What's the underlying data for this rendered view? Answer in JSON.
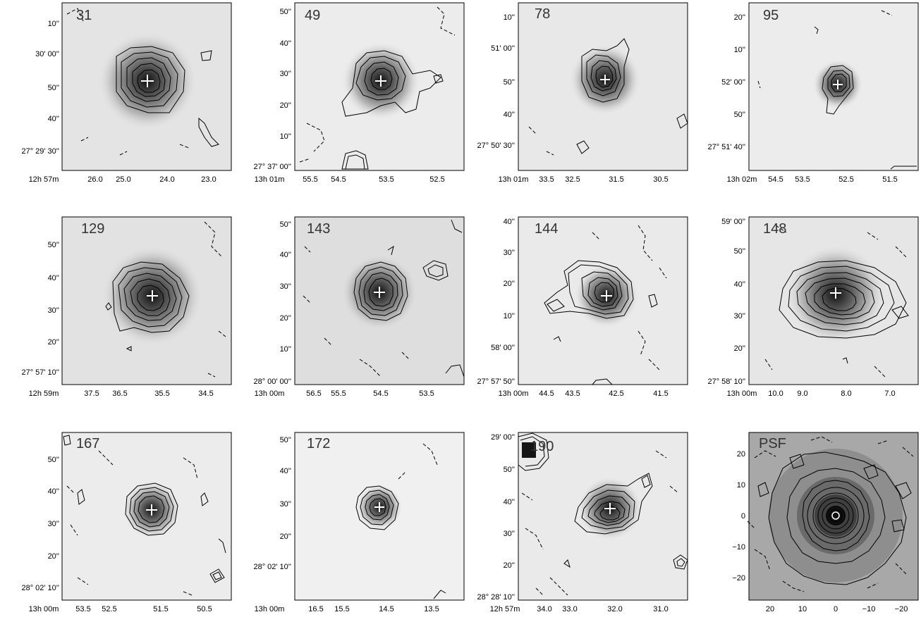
{
  "figure": {
    "panels": [
      {
        "label": "31",
        "x_ticks": [
          "26.0",
          "25.0",
          "24.0",
          "23.0"
        ],
        "x_prefix": [
          "12",
          "57"
        ],
        "y_ticks": [
          "10''",
          "30' 00''",
          "50''",
          "40''",
          "27° 29' 30''"
        ]
      },
      {
        "label": "49",
        "x_ticks": [
          "55.5",
          "54.5",
          "53.5",
          "52.5"
        ],
        "x_prefix": [
          "13",
          "01"
        ],
        "y_ticks": [
          "50''",
          "40''",
          "30''",
          "20''",
          "10''",
          "27° 37' 00''"
        ]
      },
      {
        "label": "78",
        "x_ticks": [
          "33.5",
          "32.5",
          "31.5",
          "30.5"
        ],
        "x_prefix": [
          "13",
          "01"
        ],
        "y_ticks": [
          "10''",
          "51' 00''",
          "50''",
          "40''",
          "27° 50' 30''"
        ]
      },
      {
        "label": "95",
        "x_ticks": [
          "54.5",
          "53.5",
          "52.5",
          "51.5"
        ],
        "x_prefix": [
          "13",
          "02"
        ],
        "y_ticks": [
          "20''",
          "10''",
          "52' 00''",
          "50''",
          "27° 51' 40''"
        ]
      },
      {
        "label": "129",
        "x_ticks": [
          "37.5",
          "36.5",
          "35.5",
          "34.5"
        ],
        "x_prefix": [
          "12",
          "59"
        ],
        "y_ticks": [
          "50''",
          "40''",
          "30''",
          "20''",
          "27° 57' 10''"
        ]
      },
      {
        "label": "143",
        "x_ticks": [
          "56.5",
          "55.5",
          "54.5",
          "53.5"
        ],
        "x_prefix": [
          "13",
          "00"
        ],
        "y_ticks": [
          "50''",
          "40''",
          "30''",
          "20''",
          "10''",
          "28° 00' 00''"
        ]
      },
      {
        "label": "144",
        "x_ticks": [
          "44.5",
          "43.5",
          "42.5",
          "41.5"
        ],
        "x_prefix": [
          "13",
          "00"
        ],
        "y_ticks": [
          "40''",
          "30''",
          "20''",
          "10''",
          "58' 00''",
          "27° 57' 50''"
        ]
      },
      {
        "label": "148",
        "x_ticks": [
          "10.0",
          "9.0",
          "8.0",
          "7.0"
        ],
        "x_prefix": [
          "13",
          "00"
        ],
        "y_ticks": [
          "59' 00''",
          "50''",
          "40''",
          "30''",
          "20''",
          "27° 58' 10''"
        ]
      },
      {
        "label": "167",
        "x_ticks": [
          "53.5",
          "52.5",
          "51.5",
          "50.5"
        ],
        "x_prefix": [
          "13",
          "00"
        ],
        "y_ticks": [
          "50''",
          "40''",
          "30''",
          "20''",
          "28° 02' 10''"
        ]
      },
      {
        "label": "172",
        "x_ticks": [
          "16.5",
          "15.5",
          "14.5",
          "13.5"
        ],
        "x_prefix": [
          "13",
          "00"
        ],
        "y_ticks": [
          "50''",
          "40''",
          "30''",
          "20''",
          "28° 02' 10''"
        ]
      },
      {
        "label": "190",
        "x_ticks": [
          "34.0",
          "33.0",
          "32.0",
          "31.0"
        ],
        "x_prefix": [
          "12",
          "57"
        ],
        "y_ticks": [
          "29' 00''",
          "50''",
          "40''",
          "30''",
          "20''",
          "28° 28' 10''"
        ]
      },
      {
        "label": "PSF",
        "x_ticks": [
          "20",
          "10",
          "0",
          "−10",
          "−20"
        ],
        "x_prefix": [],
        "y_ticks": [
          "20",
          "10",
          "0",
          "−10",
          "−20"
        ]
      }
    ]
  }
}
